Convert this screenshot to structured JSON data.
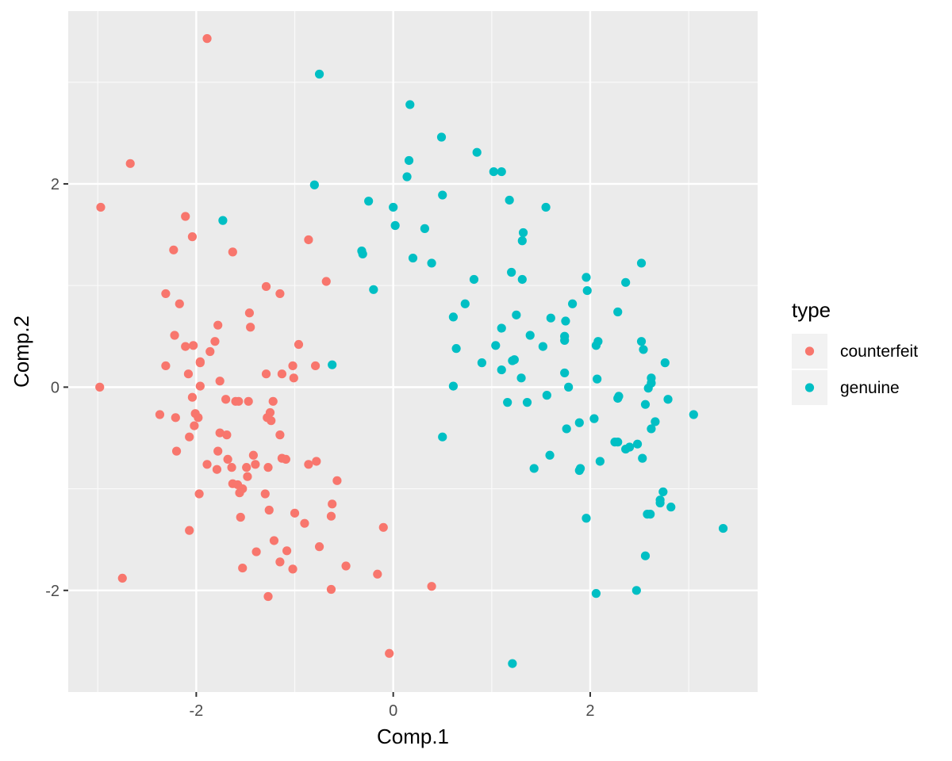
{
  "chart_data": {
    "type": "scatter",
    "xlabel": "Comp.1",
    "ylabel": "Comp.2",
    "xlim": [
      -3.3,
      3.7
    ],
    "ylim": [
      -3.0,
      3.7
    ],
    "x_ticks": [
      -2,
      0,
      2
    ],
    "y_ticks": [
      -2,
      0,
      2
    ],
    "x_tick_labels": [
      "-2",
      "0",
      "2"
    ],
    "y_tick_labels": [
      "-2",
      "0",
      "2"
    ],
    "grid": true,
    "panel_background": "#ebebeb",
    "legend": {
      "title": "type",
      "placement": "right"
    },
    "series": [
      {
        "name": "counterfeit",
        "color": "#f8766d",
        "points": [
          [
            -1.89,
            3.43
          ],
          [
            -2.67,
            2.2
          ],
          [
            -2.97,
            1.77
          ],
          [
            -2.98,
            0.0
          ],
          [
            -2.75,
            -1.88
          ],
          [
            -2.11,
            1.68
          ],
          [
            -2.04,
            1.48
          ],
          [
            -2.23,
            1.35
          ],
          [
            -1.63,
            1.33
          ],
          [
            -0.86,
            1.45
          ],
          [
            -1.29,
            0.99
          ],
          [
            -0.68,
            1.04
          ],
          [
            -2.31,
            0.92
          ],
          [
            -2.17,
            0.82
          ],
          [
            -1.15,
            0.92
          ],
          [
            -1.46,
            0.73
          ],
          [
            -1.78,
            0.61
          ],
          [
            -1.45,
            0.59
          ],
          [
            -2.22,
            0.51
          ],
          [
            -2.11,
            0.4
          ],
          [
            -2.03,
            0.41
          ],
          [
            -1.81,
            0.45
          ],
          [
            -1.86,
            0.35
          ],
          [
            -0.96,
            0.42
          ],
          [
            -1.96,
            0.25
          ],
          [
            -1.96,
            0.24
          ],
          [
            -2.31,
            0.21
          ],
          [
            -2.08,
            0.13
          ],
          [
            -1.29,
            0.13
          ],
          [
            -1.13,
            0.13
          ],
          [
            -1.02,
            0.21
          ],
          [
            -0.79,
            0.21
          ],
          [
            -1.76,
            0.06
          ],
          [
            -1.01,
            0.09
          ],
          [
            -1.96,
            0.01
          ],
          [
            -2.04,
            -0.1
          ],
          [
            -1.7,
            -0.12
          ],
          [
            -1.6,
            -0.14
          ],
          [
            -1.57,
            -0.14
          ],
          [
            -1.47,
            -0.14
          ],
          [
            -1.22,
            -0.14
          ],
          [
            -2.37,
            -0.27
          ],
          [
            -2.21,
            -0.3
          ],
          [
            -2.01,
            -0.26
          ],
          [
            -1.98,
            -0.3
          ],
          [
            -1.28,
            -0.3
          ],
          [
            -1.24,
            -0.33
          ],
          [
            -1.25,
            -0.25
          ],
          [
            -2.02,
            -0.38
          ],
          [
            -2.07,
            -0.49
          ],
          [
            -1.76,
            -0.45
          ],
          [
            -1.69,
            -0.47
          ],
          [
            -1.15,
            -0.47
          ],
          [
            -2.2,
            -0.63
          ],
          [
            -1.78,
            -0.63
          ],
          [
            -1.68,
            -0.71
          ],
          [
            -1.42,
            -0.67
          ],
          [
            -1.89,
            -0.76
          ],
          [
            -1.79,
            -0.81
          ],
          [
            -1.64,
            -0.79
          ],
          [
            -1.49,
            -0.79
          ],
          [
            -1.4,
            -0.76
          ],
          [
            -1.13,
            -0.7
          ],
          [
            -1.09,
            -0.71
          ],
          [
            -0.86,
            -0.76
          ],
          [
            -0.78,
            -0.73
          ],
          [
            -1.27,
            -0.79
          ],
          [
            -1.48,
            -0.88
          ],
          [
            -1.63,
            -0.95
          ],
          [
            -1.58,
            -0.96
          ],
          [
            -0.57,
            -0.92
          ],
          [
            -1.97,
            -1.05
          ],
          [
            -1.56,
            -1.04
          ],
          [
            -1.53,
            -1.0
          ],
          [
            -1.3,
            -1.05
          ],
          [
            -0.62,
            -1.15
          ],
          [
            -1.26,
            -1.21
          ],
          [
            -1.0,
            -1.24
          ],
          [
            -0.63,
            -1.27
          ],
          [
            -1.55,
            -1.28
          ],
          [
            -0.9,
            -1.34
          ],
          [
            -2.07,
            -1.41
          ],
          [
            -0.1,
            -1.38
          ],
          [
            -1.21,
            -1.51
          ],
          [
            -0.75,
            -1.57
          ],
          [
            -1.39,
            -1.62
          ],
          [
            -1.08,
            -1.61
          ],
          [
            -1.15,
            -1.72
          ],
          [
            -1.53,
            -1.78
          ],
          [
            -1.02,
            -1.79
          ],
          [
            -0.48,
            -1.76
          ],
          [
            -0.16,
            -1.84
          ],
          [
            -0.63,
            -1.99
          ],
          [
            -1.27,
            -2.06
          ],
          [
            0.39,
            -1.96
          ],
          [
            -0.04,
            -2.62
          ]
        ]
      },
      {
        "name": "genuine",
        "color": "#00bfc4",
        "points": [
          [
            -0.75,
            3.08
          ],
          [
            0.17,
            2.78
          ],
          [
            0.49,
            2.46
          ],
          [
            0.85,
            2.31
          ],
          [
            0.16,
            2.23
          ],
          [
            1.02,
            2.12
          ],
          [
            1.1,
            2.12
          ],
          [
            0.14,
            2.07
          ],
          [
            -0.8,
            1.99
          ],
          [
            0.5,
            1.89
          ],
          [
            1.18,
            1.84
          ],
          [
            -0.25,
            1.83
          ],
          [
            -0.0,
            1.77
          ],
          [
            1.55,
            1.77
          ],
          [
            -1.73,
            1.64
          ],
          [
            0.02,
            1.59
          ],
          [
            0.32,
            1.56
          ],
          [
            1.32,
            1.52
          ],
          [
            1.31,
            1.44
          ],
          [
            -0.32,
            1.34
          ],
          [
            -0.31,
            1.31
          ],
          [
            0.2,
            1.27
          ],
          [
            0.39,
            1.22
          ],
          [
            2.52,
            1.22
          ],
          [
            1.2,
            1.13
          ],
          [
            1.96,
            1.08
          ],
          [
            0.82,
            1.06
          ],
          [
            1.31,
            1.06
          ],
          [
            2.36,
            1.03
          ],
          [
            1.97,
            0.95
          ],
          [
            -0.2,
            0.96
          ],
          [
            0.73,
            0.82
          ],
          [
            1.82,
            0.82
          ],
          [
            2.28,
            0.74
          ],
          [
            0.61,
            0.69
          ],
          [
            1.25,
            0.71
          ],
          [
            1.6,
            0.68
          ],
          [
            1.75,
            0.65
          ],
          [
            1.1,
            0.58
          ],
          [
            1.39,
            0.51
          ],
          [
            1.74,
            0.5
          ],
          [
            1.74,
            0.46
          ],
          [
            2.08,
            0.45
          ],
          [
            2.52,
            0.45
          ],
          [
            1.04,
            0.41
          ],
          [
            1.52,
            0.4
          ],
          [
            2.06,
            0.41
          ],
          [
            0.64,
            0.38
          ],
          [
            2.54,
            0.37
          ],
          [
            0.9,
            0.24
          ],
          [
            1.21,
            0.26
          ],
          [
            1.23,
            0.27
          ],
          [
            2.76,
            0.24
          ],
          [
            -0.62,
            0.22
          ],
          [
            1.1,
            0.17
          ],
          [
            1.74,
            0.14
          ],
          [
            1.3,
            0.09
          ],
          [
            2.07,
            0.08
          ],
          [
            2.62,
            0.09
          ],
          [
            0.61,
            0.01
          ],
          [
            1.78,
            0.0
          ],
          [
            2.62,
            0.04
          ],
          [
            2.59,
            -0.01
          ],
          [
            1.56,
            -0.08
          ],
          [
            2.29,
            -0.09
          ],
          [
            2.28,
            -0.11
          ],
          [
            2.79,
            -0.12
          ],
          [
            1.16,
            -0.15
          ],
          [
            1.36,
            -0.15
          ],
          [
            2.56,
            -0.17
          ],
          [
            3.05,
            -0.27
          ],
          [
            2.04,
            -0.31
          ],
          [
            1.89,
            -0.35
          ],
          [
            2.66,
            -0.34
          ],
          [
            1.76,
            -0.41
          ],
          [
            2.62,
            -0.41
          ],
          [
            0.5,
            -0.49
          ],
          [
            2.25,
            -0.54
          ],
          [
            2.28,
            -0.54
          ],
          [
            2.48,
            -0.56
          ],
          [
            2.4,
            -0.59
          ],
          [
            2.36,
            -0.61
          ],
          [
            1.59,
            -0.67
          ],
          [
            2.53,
            -0.7
          ],
          [
            2.1,
            -0.73
          ],
          [
            1.43,
            -0.8
          ],
          [
            1.9,
            -0.8
          ],
          [
            1.89,
            -0.82
          ],
          [
            2.74,
            -1.03
          ],
          [
            2.71,
            -1.11
          ],
          [
            2.71,
            -1.14
          ],
          [
            2.82,
            -1.18
          ],
          [
            2.58,
            -1.25
          ],
          [
            2.61,
            -1.25
          ],
          [
            1.96,
            -1.29
          ],
          [
            3.35,
            -1.39
          ],
          [
            2.56,
            -1.66
          ],
          [
            2.47,
            -2.0
          ],
          [
            2.06,
            -2.03
          ],
          [
            1.21,
            -2.72
          ]
        ]
      }
    ]
  }
}
